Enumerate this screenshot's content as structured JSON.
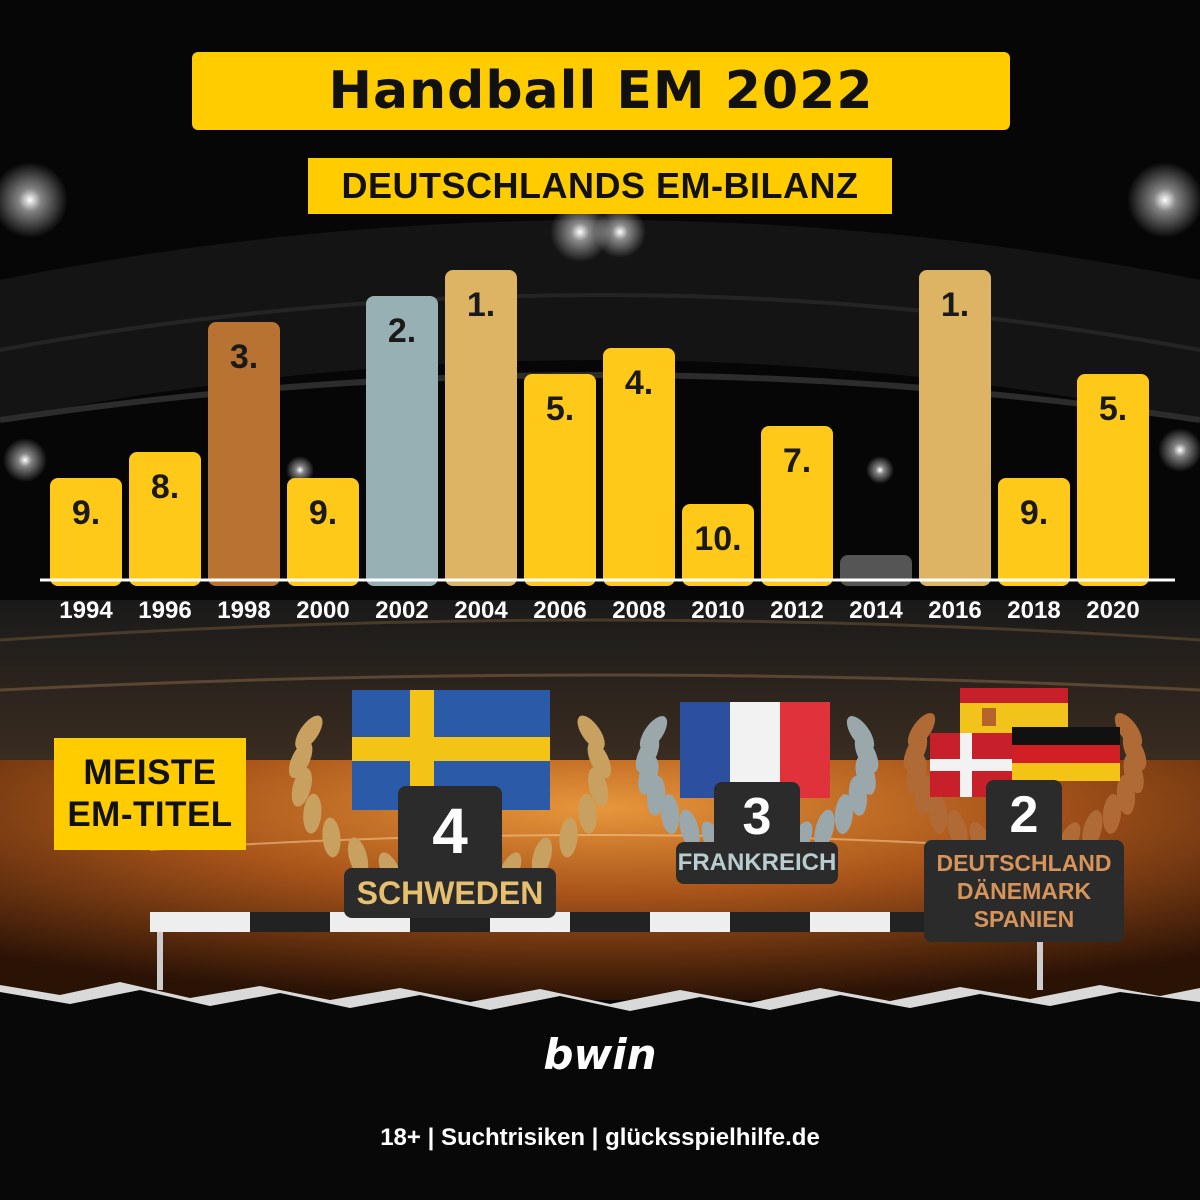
{
  "title": "Handball EM 2022",
  "subtitle": "DEUTSCHLANDS EM-BILANZ",
  "chart_data": {
    "type": "bar",
    "categories": [
      "1994",
      "1996",
      "1998",
      "2000",
      "2002",
      "2004",
      "2006",
      "2008",
      "2010",
      "2012",
      "2014",
      "2016",
      "2018",
      "2020"
    ],
    "values": [
      9,
      8,
      3,
      9,
      2,
      1,
      5,
      4,
      10,
      7,
      null,
      1,
      9,
      5
    ],
    "value_labels": [
      "9.",
      "8.",
      "3.",
      "9.",
      "2.",
      "1.",
      "5.",
      "4.",
      "10.",
      "7.",
      "",
      "1.",
      "9.",
      "5."
    ],
    "medal": [
      "none",
      "none",
      "bronze",
      "none",
      "silver",
      "gold",
      "none",
      "none",
      "none",
      "none",
      "not-qualified",
      "gold",
      "none",
      "none"
    ],
    "title": "DEUTSCHLANDS EM-BILANZ",
    "xlabel": "",
    "ylabel": ""
  },
  "colors": {
    "bar": "#ffc919",
    "gold": "#dcb463",
    "silver": "#97b0b3",
    "bronze": "#b87333",
    "not_qualified": "#555555",
    "accent": "#ffcc00"
  },
  "most_titles": {
    "heading_line1": "MEISTE",
    "heading_line2": "EM-TITEL",
    "entries": [
      {
        "count": "4",
        "names": [
          "SCHWEDEN"
        ],
        "flags": [
          "sweden"
        ],
        "wreath": "gold"
      },
      {
        "count": "3",
        "names": [
          "FRANKREICH"
        ],
        "flags": [
          "france"
        ],
        "wreath": "silver"
      },
      {
        "count": "2",
        "names": [
          "DEUTSCHLAND",
          "DÄNEMARK",
          "SPANIEN"
        ],
        "flags": [
          "spain",
          "denmark",
          "germany"
        ],
        "wreath": "bronze"
      }
    ]
  },
  "brand": "bwin",
  "footer": "18+ | Suchtrisiken | glücksspielhilfe.de"
}
